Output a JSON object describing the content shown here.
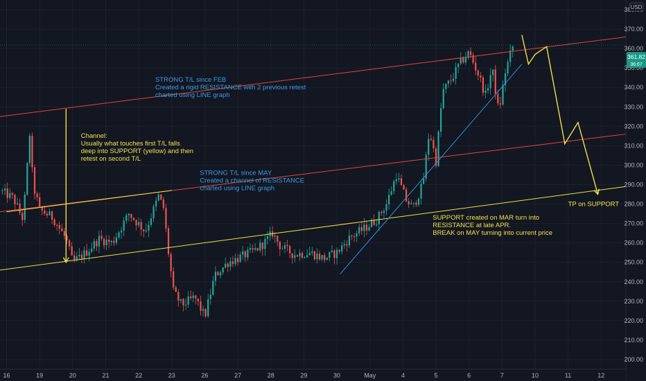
{
  "chart_data": {
    "type": "candlestick",
    "unit": "USD",
    "ylim": [
      195,
      385
    ],
    "y_ticks": [
      200,
      210,
      220,
      230,
      240,
      250,
      260,
      270,
      280,
      290,
      300,
      310,
      320,
      330,
      340,
      350,
      360,
      370,
      380
    ],
    "y_tick_labels": [
      "200.00",
      "210.00",
      "220.00",
      "230.00",
      "240.00",
      "250.00",
      "260.00",
      "270.00",
      "280.00",
      "290.00",
      "300.00",
      "310.00",
      "320.00",
      "330.00",
      "340.00",
      "350.00",
      "360.00",
      "370.00",
      "380.00"
    ],
    "x_ticks": [
      {
        "label": "16",
        "x": 0
      },
      {
        "label": "19",
        "x": 1
      },
      {
        "label": "20",
        "x": 2
      },
      {
        "label": "21",
        "x": 3
      },
      {
        "label": "22",
        "x": 4
      },
      {
        "label": "23",
        "x": 5
      },
      {
        "label": "26",
        "x": 6
      },
      {
        "label": "27",
        "x": 7
      },
      {
        "label": "28",
        "x": 8
      },
      {
        "label": "29",
        "x": 9
      },
      {
        "label": "30",
        "x": 10
      },
      {
        "label": "May",
        "x": 11
      },
      {
        "label": "4",
        "x": 12
      },
      {
        "label": "5",
        "x": 13
      },
      {
        "label": "6",
        "x": 14
      },
      {
        "label": "7",
        "x": 15
      },
      {
        "label": "10",
        "x": 16
      },
      {
        "label": "11",
        "x": 17
      },
      {
        "label": "12",
        "x": 18
      }
    ],
    "xlim": [
      -0.2,
      18.75
    ],
    "anchors": [
      [
        -0.2,
        287
      ],
      [
        0.2,
        283
      ],
      [
        0.5,
        272
      ],
      [
        0.7,
        316
      ],
      [
        0.8,
        290
      ],
      [
        1.0,
        277
      ],
      [
        1.4,
        273
      ],
      [
        1.8,
        262
      ],
      [
        2.0,
        250
      ],
      [
        2.4,
        255
      ],
      [
        2.8,
        262
      ],
      [
        3.2,
        260
      ],
      [
        3.7,
        275
      ],
      [
        4.2,
        266
      ],
      [
        4.6,
        284
      ],
      [
        4.75,
        278
      ],
      [
        4.9,
        255
      ],
      [
        5.05,
        235
      ],
      [
        5.3,
        228
      ],
      [
        5.7,
        232
      ],
      [
        6.0,
        222
      ],
      [
        6.3,
        243
      ],
      [
        6.7,
        250
      ],
      [
        7.0,
        252
      ],
      [
        7.5,
        256
      ],
      [
        7.8,
        260
      ],
      [
        8.05,
        265
      ],
      [
        8.3,
        258
      ],
      [
        8.7,
        254
      ],
      [
        9.2,
        255
      ],
      [
        9.6,
        252
      ],
      [
        10.0,
        255
      ],
      [
        10.4,
        263
      ],
      [
        10.8,
        267
      ],
      [
        11.2,
        272
      ],
      [
        11.5,
        280
      ],
      [
        11.8,
        295
      ],
      [
        12.1,
        282
      ],
      [
        12.3,
        278
      ],
      [
        12.6,
        290
      ],
      [
        12.8,
        318
      ],
      [
        13.0,
        302
      ],
      [
        13.2,
        338
      ],
      [
        13.5,
        345
      ],
      [
        13.7,
        352
      ],
      [
        14.0,
        358
      ],
      [
        14.3,
        346
      ],
      [
        14.5,
        336
      ],
      [
        14.7,
        350
      ],
      [
        14.9,
        327
      ],
      [
        15.1,
        348
      ],
      [
        15.3,
        360
      ],
      [
        15.35,
        362
      ]
    ],
    "last_price": "361.82",
    "last_price_sub": "36:67",
    "trend_lines": [
      {
        "name": "resistance-upper",
        "color": "#e0473f",
        "points": [
          [
            -0.2,
            325
          ],
          [
            18.75,
            366
          ]
        ]
      },
      {
        "name": "resistance-lower",
        "color": "#e0473f",
        "points": [
          [
            -0.2,
            276
          ],
          [
            18.75,
            316
          ]
        ]
      },
      {
        "name": "support-yellow",
        "color": "#f3e14a",
        "points": [
          [
            -0.2,
            246
          ],
          [
            18.75,
            289
          ]
        ]
      },
      {
        "name": "channel-top-yellow",
        "color": "#f3e14a",
        "points": [
          [
            0.0,
            276
          ],
          [
            5.0,
            287
          ]
        ]
      },
      {
        "name": "uptrend-blue",
        "color": "#2f8fd8",
        "points": [
          [
            10.1,
            244
          ],
          [
            15.6,
            352
          ]
        ]
      }
    ],
    "paths": [
      {
        "name": "channel-arrow",
        "color": "#f3e14a",
        "points": [
          [
            1.8,
            329
          ],
          [
            1.8,
            250
          ]
        ],
        "arrow": true
      },
      {
        "name": "projection-path",
        "color": "#f3e14a",
        "points": [
          [
            15.6,
            367
          ],
          [
            15.8,
            352
          ],
          [
            16.0,
            357
          ],
          [
            16.35,
            361
          ],
          [
            16.9,
            311
          ],
          [
            17.3,
            322
          ],
          [
            17.9,
            285
          ]
        ],
        "arrow": true
      }
    ],
    "annotations": [
      {
        "name": "annotation-strong-tl-feb",
        "color": "#3d9ae0",
        "x": 4.5,
        "y": 343,
        "lines": [
          "STRONG T/L since FEB",
          "Created a rigid RESISTANCE with 2 previous retest",
          "charted using LINE graph"
        ]
      },
      {
        "name": "annotation-channel",
        "color": "#f3e14a",
        "x": 2.25,
        "y": 314,
        "lines": [
          "Channel:",
          "Usually what touches first T/L falls",
          "deep into SUPPORT (yellow) and then",
          "retest on second T/L"
        ]
      },
      {
        "name": "annotation-strong-tl-may",
        "color": "#3d9ae0",
        "x": 5.85,
        "y": 295,
        "lines": [
          "STRONG T/L since MAY",
          "Created a channel of RESISTANCE",
          "charted using LINE graph"
        ]
      },
      {
        "name": "annotation-support-mar",
        "color": "#f3e14a",
        "x": 12.9,
        "y": 272,
        "lines": [
          "SUPPORT created on MAR turn into",
          "RESISTANCE at late APR.",
          "BREAK on MAY turning into current price"
        ]
      },
      {
        "name": "annotation-tp",
        "color": "#f3e14a",
        "x": 17.0,
        "y": 279,
        "lines": [
          "TP on SUPPORT"
        ]
      }
    ]
  }
}
